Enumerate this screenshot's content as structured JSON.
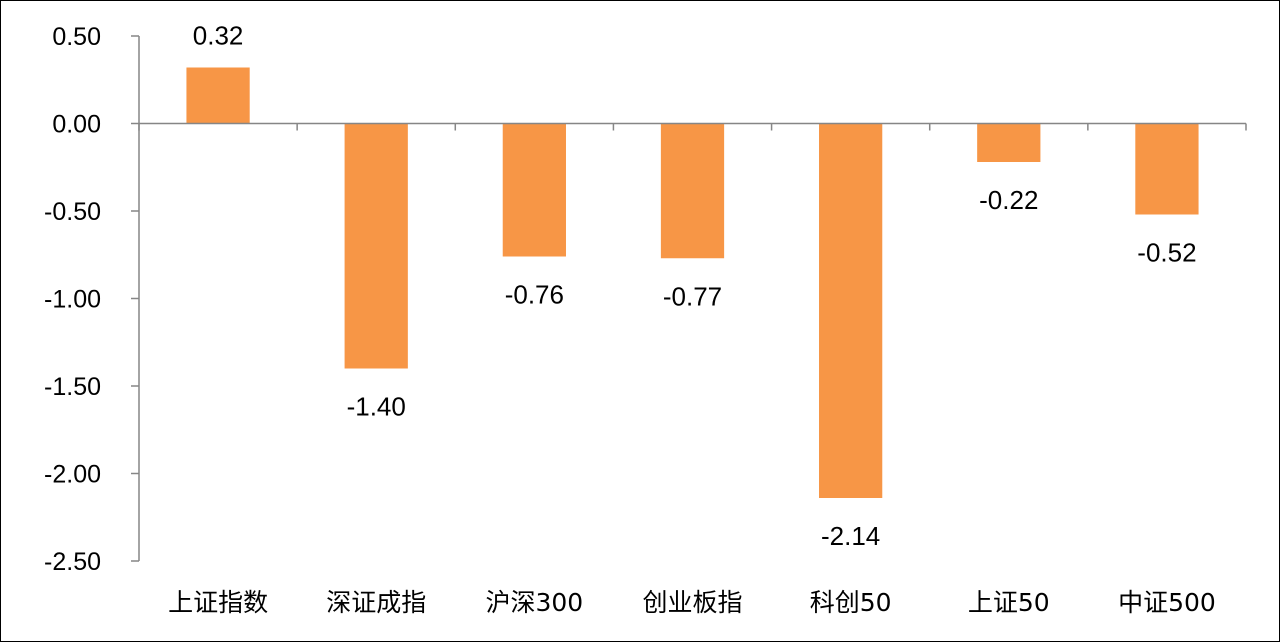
{
  "chart_data": {
    "type": "bar",
    "title": "",
    "xlabel": "",
    "ylabel": "",
    "categories": [
      "上证指数",
      "深证成指",
      "沪深300",
      "创业板指",
      "科创50",
      "上证50",
      "中证500"
    ],
    "values": [
      0.32,
      -1.4,
      -0.76,
      -0.77,
      -2.14,
      -0.22,
      -0.52
    ],
    "value_labels": [
      "0.32",
      "-1.40",
      "-0.76",
      "-0.77",
      "-2.14",
      "-0.22",
      "-0.52"
    ],
    "yticks": [
      0.5,
      0,
      -0.5,
      -1,
      -1.5,
      -2,
      -2.5
    ],
    "ytick_labels": [
      "0.50",
      "0.00",
      "-0.50",
      "-1.00",
      "-1.50",
      "-2.00",
      "-2.50"
    ],
    "ylim": [
      -2.5,
      0.5
    ],
    "grid": false,
    "legend": "none",
    "bar_color": "#F79646"
  }
}
